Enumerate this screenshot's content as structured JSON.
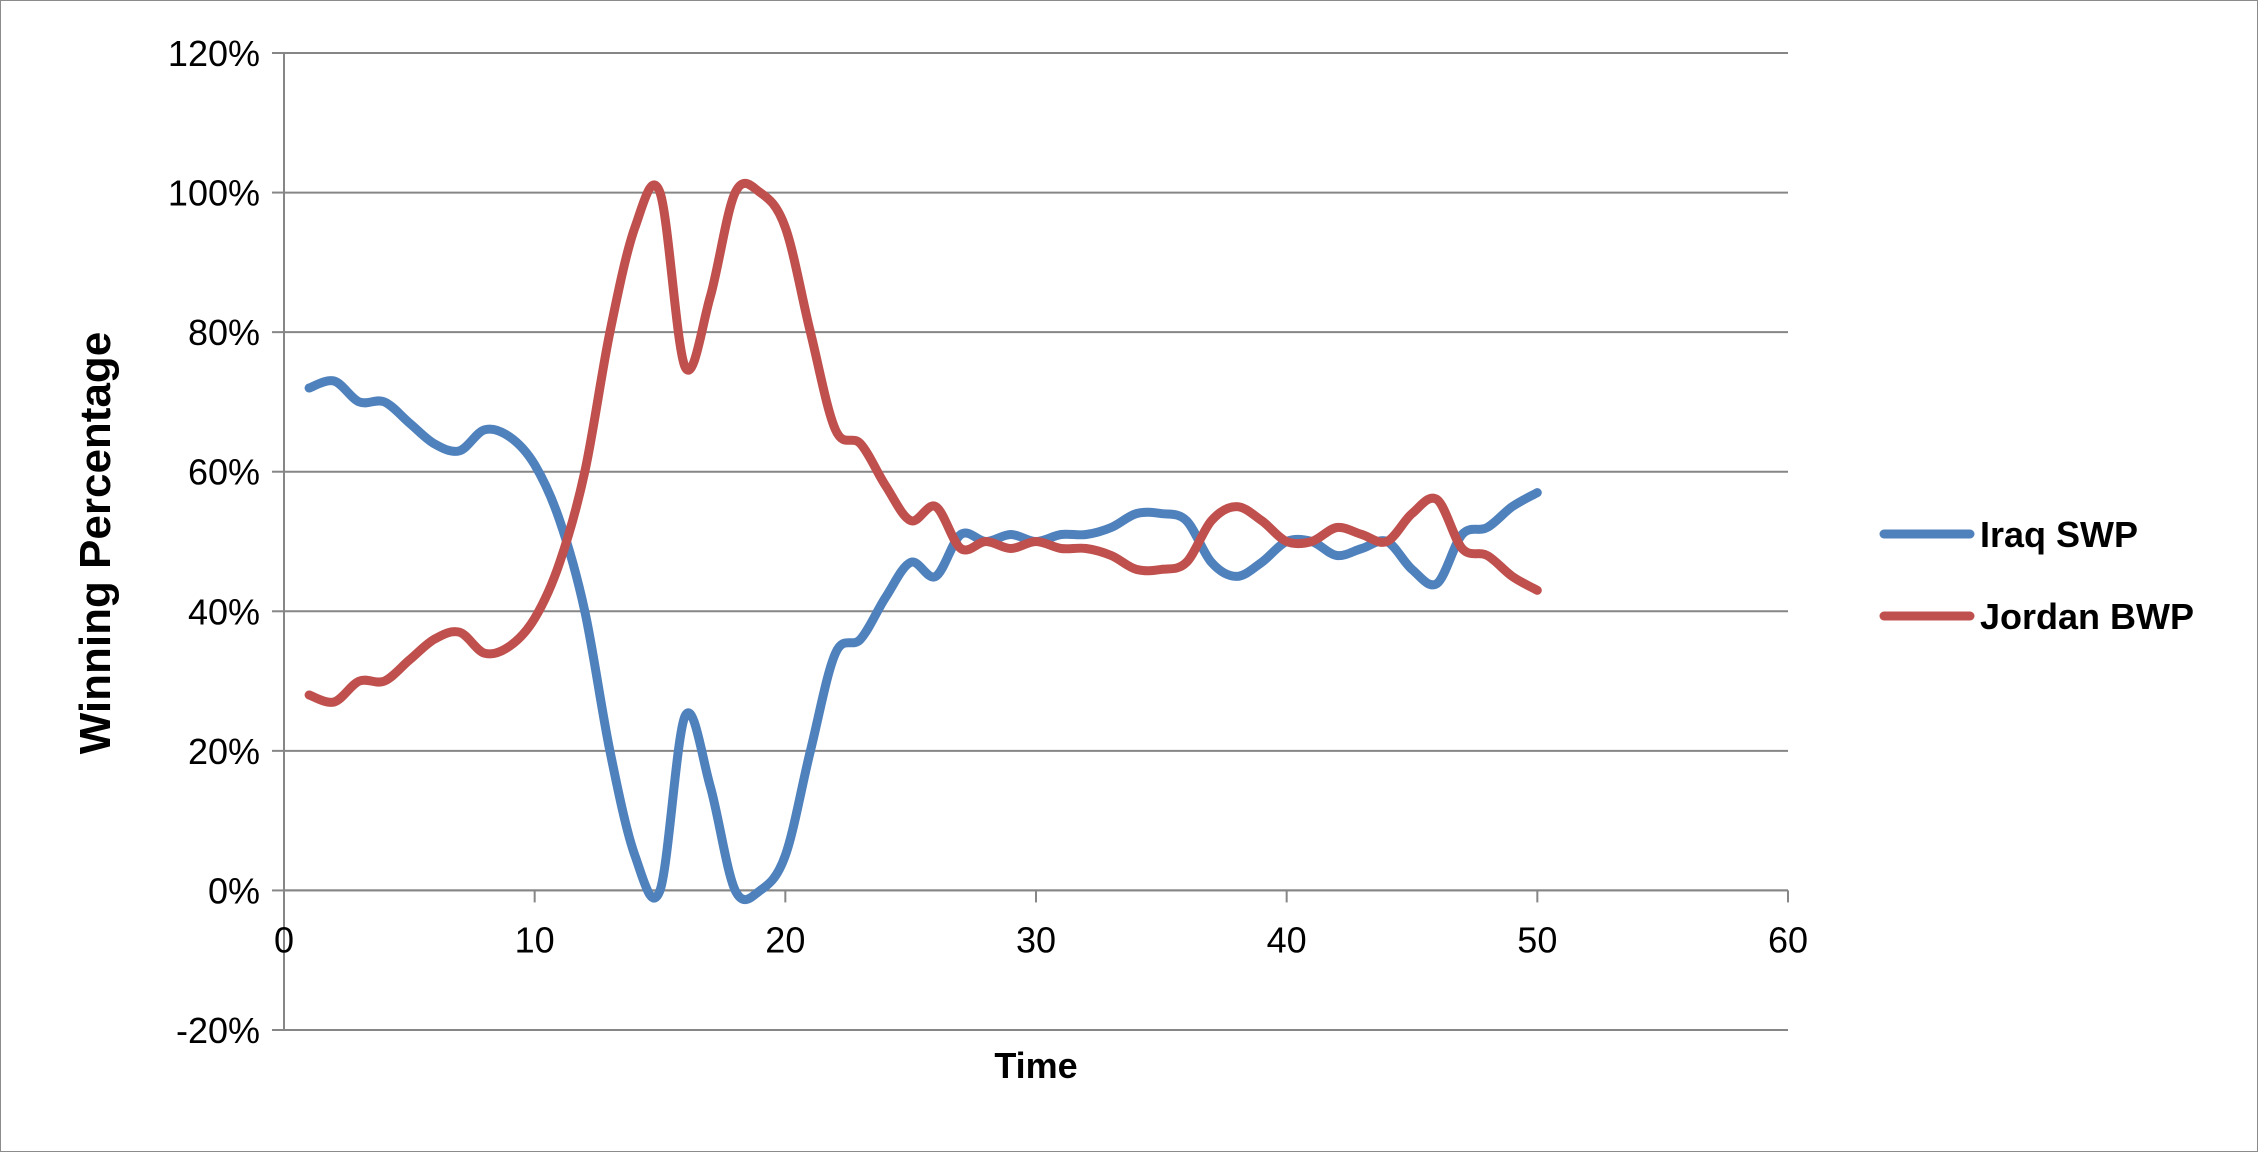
{
  "chart_data": {
    "type": "line",
    "title": "",
    "xlabel": "Time",
    "ylabel": "Winning Percentage",
    "xlim": [
      0,
      60
    ],
    "ylim": [
      -20,
      120
    ],
    "x_ticks": [
      0,
      10,
      20,
      30,
      40,
      50,
      60
    ],
    "y_ticks": [
      -20,
      0,
      20,
      40,
      60,
      80,
      100,
      120
    ],
    "y_tick_labels": [
      "-20%",
      "0%",
      "20%",
      "40%",
      "60%",
      "80%",
      "100%",
      "120%"
    ],
    "grid": "horizontal",
    "legend_position": "right",
    "x": [
      1,
      2,
      3,
      4,
      5,
      6,
      7,
      8,
      9,
      10,
      11,
      12,
      13,
      14,
      15,
      16,
      17,
      18,
      19,
      20,
      21,
      22,
      23,
      24,
      25,
      26,
      27,
      28,
      29,
      30,
      31,
      32,
      33,
      34,
      35,
      36,
      37,
      38,
      39,
      40,
      41,
      42,
      43,
      44,
      45,
      46,
      47,
      48,
      49,
      50
    ],
    "series": [
      {
        "name": "Iraq SWP",
        "color": "#4f81bd",
        "values": [
          72,
          73,
          70,
          70,
          67,
          64,
          63,
          66,
          65,
          61,
          53,
          40,
          20,
          5,
          0,
          25,
          15,
          0,
          0,
          5,
          20,
          34,
          36,
          42,
          47,
          45,
          51,
          50,
          51,
          50,
          51,
          51,
          52,
          54,
          54,
          53,
          47,
          45,
          47,
          50,
          50,
          48,
          49,
          50,
          46,
          44,
          51,
          52,
          55,
          57
        ]
      },
      {
        "name": "Jordan BWP",
        "color": "#c0504d",
        "values": [
          28,
          27,
          30,
          30,
          33,
          36,
          37,
          34,
          35,
          39,
          47,
          60,
          80,
          95,
          100,
          75,
          85,
          100,
          100,
          95,
          80,
          66,
          64,
          58,
          53,
          55,
          49,
          50,
          49,
          50,
          49,
          49,
          48,
          46,
          46,
          47,
          53,
          55,
          53,
          50,
          50,
          52,
          51,
          50,
          54,
          56,
          49,
          48,
          45,
          43
        ]
      }
    ]
  }
}
